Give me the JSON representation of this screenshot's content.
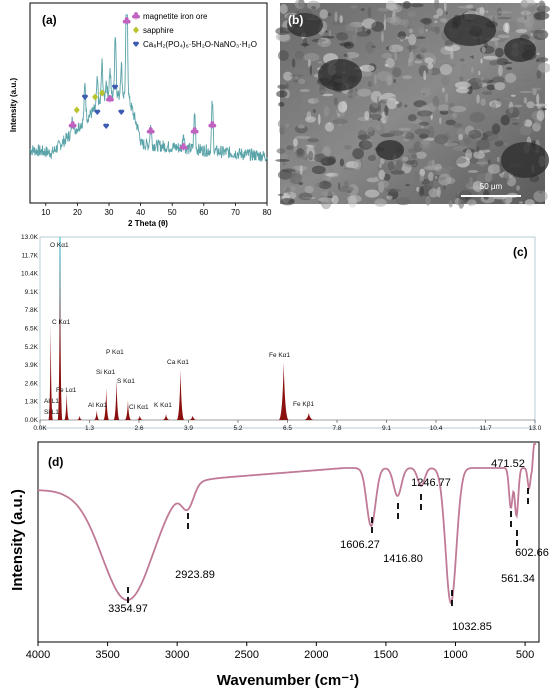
{
  "panels": {
    "a": {
      "label": "(a)"
    },
    "b": {
      "label": "(b)",
      "scalebar": "50 µm"
    },
    "c": {
      "label": "(c)"
    },
    "d": {
      "label": "(d)"
    }
  },
  "chart_data": [
    {
      "id": "xrd",
      "type": "line",
      "xlabel": "2 Theta (θ)",
      "ylabel": "Intensity (a.u.)",
      "xlim": [
        5,
        80
      ],
      "xticks": [
        10,
        20,
        30,
        40,
        50,
        60,
        70,
        80
      ],
      "series_color": "#5aa3a8",
      "legend": [
        {
          "name": "magnetite iron ore",
          "symbol": "club",
          "color": "#c060c0"
        },
        {
          "name": "sapphire",
          "symbol": "diamond",
          "color": "#b8c42a"
        },
        {
          "name": "Ca₈H₂(PO₄)₆·5H₂O-NaNO₃·H₂O",
          "symbol": "heart",
          "color": "#3a5bb0"
        }
      ],
      "legend_position": "top-right",
      "markers": [
        {
          "x": 18.5,
          "type": "club"
        },
        {
          "x": 19.8,
          "type": "diamond"
        },
        {
          "x": 22.4,
          "type": "heart"
        },
        {
          "x": 25.6,
          "type": "diamond"
        },
        {
          "x": 26.3,
          "type": "heart"
        },
        {
          "x": 27.8,
          "type": "diamond"
        },
        {
          "x": 29.1,
          "type": "heart"
        },
        {
          "x": 30.3,
          "type": "club"
        },
        {
          "x": 31.9,
          "type": "heart"
        },
        {
          "x": 33.9,
          "type": "heart"
        },
        {
          "x": 35.6,
          "type": "club"
        },
        {
          "x": 43.2,
          "type": "club"
        },
        {
          "x": 53.6,
          "type": "club"
        },
        {
          "x": 57.1,
          "type": "club"
        },
        {
          "x": 62.7,
          "type": "club"
        }
      ],
      "peaks_x": [
        18.5,
        22.4,
        26.3,
        27.8,
        29.1,
        30.3,
        32.0,
        33.9,
        35.6,
        43.2,
        53.6,
        57.1,
        62.7
      ]
    },
    {
      "id": "eds",
      "type": "area",
      "xlim": [
        0,
        13.0
      ],
      "xticks": [
        "0.0K",
        "1.3",
        "2.6",
        "3.9",
        "5.2",
        "6.5",
        "7.8",
        "9.1",
        "10.4",
        "11.7",
        "13.0"
      ],
      "yticks": [
        "0.0K",
        "1.3K",
        "2.6K",
        "3.9K",
        "5.2K",
        "6.5K",
        "7.8K",
        "9.1K",
        "10.4K",
        "11.7K",
        "13.0K"
      ],
      "ylim": [
        0,
        13.0
      ],
      "series_color": "#8b1010",
      "peaks": [
        {
          "x": 0.28,
          "y": 6.8,
          "label": "C  Kα1"
        },
        {
          "x": 0.525,
          "y": 13.0,
          "label": "O  Kα1"
        },
        {
          "x": 0.7,
          "y": 2.0,
          "label": "Fe Lα1"
        },
        {
          "x": 1.04,
          "y": 0.3,
          "label": ""
        },
        {
          "x": 1.49,
          "y": 0.7,
          "label": "Al Kα1"
        },
        {
          "x": 1.74,
          "y": 2.3,
          "label": "Si Kα1"
        },
        {
          "x": 2.01,
          "y": 2.9,
          "label": "P  Kα1"
        },
        {
          "x": 2.31,
          "y": 1.4,
          "label": "S  Kα1"
        },
        {
          "x": 2.62,
          "y": 0.3,
          "label": "Cl Kα1"
        },
        {
          "x": 3.31,
          "y": 0.4,
          "label": "K  Kα1"
        },
        {
          "x": 3.69,
          "y": 3.6,
          "label": "Ca Kα1"
        },
        {
          "x": 4.01,
          "y": 0.3,
          "label": ""
        },
        {
          "x": 6.4,
          "y": 4.1,
          "label": "Fe Kα1"
        },
        {
          "x": 7.06,
          "y": 0.5,
          "label": "Fe Kβ1"
        }
      ],
      "extra_labels": [
        "Al L1",
        "Si L1"
      ]
    },
    {
      "id": "ftir",
      "type": "line",
      "xlabel": "Wavenumber (cm⁻¹)",
      "ylabel": "Intensity (a.u.)",
      "xlim": [
        4000,
        400
      ],
      "xticks": [
        4000,
        3500,
        3000,
        2500,
        2000,
        1500,
        1000,
        500
      ],
      "series_color": "#c07a98",
      "peaks": [
        {
          "x": 3354.97,
          "label": "3354.97"
        },
        {
          "x": 2923.89,
          "label": "2923.89"
        },
        {
          "x": 1606.27,
          "label": "1606.27"
        },
        {
          "x": 1416.8,
          "label": "1416.80"
        },
        {
          "x": 1246.77,
          "label": "1246.77"
        },
        {
          "x": 1032.85,
          "label": "1032.85"
        },
        {
          "x": 602.66,
          "label": "602.66"
        },
        {
          "x": 561.34,
          "label": "561.34"
        },
        {
          "x": 471.52,
          "label": "471.52"
        }
      ]
    }
  ]
}
